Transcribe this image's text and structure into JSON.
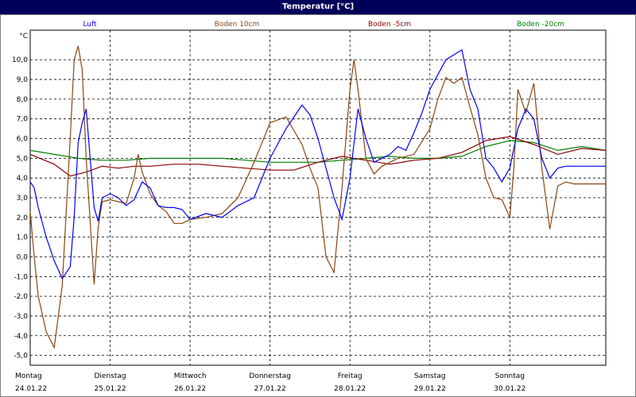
{
  "window": {
    "title": "Temperatur [°C]"
  },
  "chart_data": {
    "type": "line",
    "title": "Temperatur [°C]",
    "ylabel": "°C",
    "ylim": [
      -5.5,
      11.5
    ],
    "yticks": [
      10,
      9,
      8,
      7,
      6,
      5,
      4,
      3,
      2,
      1,
      0,
      -1,
      -2,
      -3,
      -4,
      -5
    ],
    "ytick_labels": [
      "10,0",
      "9,0",
      "8,0",
      "7,0",
      "6,0",
      "5,0",
      "4,0",
      "3,0",
      "2,0",
      "1,0",
      "0,0",
      "-1,0",
      "-2,0",
      "-3,0",
      "-4,0",
      "-5,0"
    ],
    "xlim": [
      0,
      7.2
    ],
    "days": [
      {
        "name": "Montag",
        "date": "24.01.22"
      },
      {
        "name": "Dienstag",
        "date": "25.01.22"
      },
      {
        "name": "Mittwoch",
        "date": "26.01.22"
      },
      {
        "name": "Donnerstag",
        "date": "27.01.22"
      },
      {
        "name": "Freitag",
        "date": "28.01.22"
      },
      {
        "name": "Samstag",
        "date": "29.01.22"
      },
      {
        "name": "Sonntag",
        "date": "30.01.22"
      }
    ],
    "grid": true,
    "legend_position": "top",
    "series": [
      {
        "name": "Luft",
        "color": "#0000ff",
        "x": [
          0,
          0.05,
          0.1,
          0.2,
          0.3,
          0.4,
          0.5,
          0.55,
          0.6,
          0.65,
          0.7,
          0.8,
          0.85,
          0.9,
          1.0,
          1.1,
          1.2,
          1.3,
          1.4,
          1.5,
          1.6,
          1.7,
          1.8,
          1.9,
          2.0,
          2.2,
          2.4,
          2.6,
          2.8,
          3.0,
          3.2,
          3.4,
          3.5,
          3.6,
          3.7,
          3.8,
          3.9,
          4.0,
          4.1,
          4.2,
          4.3,
          4.4,
          4.5,
          4.6,
          4.7,
          4.8,
          4.9,
          5.0,
          5.2,
          5.4,
          5.5,
          5.6,
          5.7,
          5.8,
          5.9,
          6.0,
          6.1,
          6.2,
          6.3,
          6.4,
          6.5,
          6.6,
          6.7,
          6.8,
          6.9,
          7.0,
          7.1,
          7.2
        ],
        "y": [
          3.8,
          3.5,
          2.5,
          1.0,
          -0.2,
          -1.1,
          -0.5,
          2.0,
          5.8,
          6.8,
          7.5,
          2.5,
          1.8,
          3.0,
          3.2,
          3.0,
          2.6,
          2.9,
          3.8,
          3.5,
          2.6,
          2.5,
          2.5,
          2.4,
          1.9,
          2.2,
          2.0,
          2.6,
          3.0,
          5.0,
          6.5,
          7.7,
          7.2,
          6.0,
          4.5,
          3.0,
          1.9,
          4.0,
          7.5,
          6.0,
          4.8,
          5.0,
          5.2,
          5.6,
          5.4,
          6.3,
          7.3,
          8.5,
          10.0,
          10.5,
          8.5,
          7.5,
          5.0,
          4.5,
          3.8,
          4.5,
          6.5,
          7.5,
          7.0,
          5.0,
          4.0,
          4.5,
          4.6,
          4.6,
          4.6,
          4.6,
          4.6,
          4.6
        ]
      },
      {
        "name": "Boden 10cm",
        "color": "#8b4513",
        "x": [
          0,
          0.05,
          0.1,
          0.2,
          0.3,
          0.4,
          0.5,
          0.55,
          0.6,
          0.65,
          0.7,
          0.8,
          0.85,
          0.9,
          1.0,
          1.1,
          1.2,
          1.3,
          1.35,
          1.4,
          1.5,
          1.6,
          1.7,
          1.8,
          1.9,
          2.0,
          2.2,
          2.4,
          2.6,
          2.8,
          3.0,
          3.2,
          3.4,
          3.5,
          3.6,
          3.7,
          3.8,
          3.9,
          4.0,
          4.05,
          4.1,
          4.2,
          4.3,
          4.4,
          4.6,
          4.8,
          5.0,
          5.1,
          5.2,
          5.3,
          5.4,
          5.5,
          5.6,
          5.7,
          5.8,
          5.9,
          6.0,
          6.05,
          6.1,
          6.2,
          6.3,
          6.4,
          6.5,
          6.6,
          6.7,
          6.8,
          6.9,
          7.0,
          7.1,
          7.2
        ],
        "y": [
          2.3,
          0.0,
          -2.0,
          -3.8,
          -4.6,
          -1.5,
          6.0,
          10.0,
          10.7,
          9.5,
          5.0,
          -1.4,
          1.5,
          2.8,
          2.9,
          2.8,
          2.7,
          4.0,
          5.2,
          4.3,
          3.2,
          2.6,
          2.3,
          1.7,
          1.7,
          1.9,
          2.0,
          2.2,
          3.0,
          4.8,
          6.8,
          7.1,
          5.7,
          4.5,
          3.5,
          0.0,
          -0.8,
          3.5,
          8.5,
          10.0,
          8.5,
          5.0,
          4.2,
          4.6,
          5.0,
          5.2,
          6.5,
          8.0,
          9.1,
          8.8,
          9.1,
          7.6,
          6.2,
          4.0,
          3.0,
          2.9,
          2.0,
          4.5,
          8.5,
          7.3,
          8.8,
          4.5,
          1.4,
          3.6,
          3.8,
          3.7,
          3.7,
          3.7,
          3.7,
          3.7
        ]
      },
      {
        "name": "Boden -5cm",
        "color": "#8b0000",
        "x": [
          0,
          0.3,
          0.5,
          0.7,
          0.9,
          1.1,
          1.3,
          1.5,
          1.8,
          2.1,
          2.4,
          2.7,
          3.0,
          3.3,
          3.6,
          3.9,
          4.2,
          4.5,
          4.8,
          5.1,
          5.4,
          5.7,
          6.0,
          6.3,
          6.6,
          6.9,
          7.2
        ],
        "y": [
          5.2,
          4.7,
          4.1,
          4.3,
          4.6,
          4.5,
          4.6,
          4.6,
          4.7,
          4.7,
          4.6,
          4.5,
          4.4,
          4.4,
          4.8,
          5.1,
          4.9,
          4.7,
          4.9,
          5.0,
          5.3,
          5.9,
          6.1,
          5.7,
          5.2,
          5.5,
          5.4
        ]
      },
      {
        "name": "Boden -20cm",
        "color": "#008000",
        "x": [
          0,
          0.3,
          0.6,
          0.9,
          1.2,
          1.5,
          1.8,
          2.1,
          2.4,
          2.7,
          3.0,
          3.3,
          3.6,
          3.9,
          4.2,
          4.5,
          4.8,
          5.1,
          5.4,
          5.7,
          6.0,
          6.3,
          6.6,
          6.9,
          7.2
        ],
        "y": [
          5.4,
          5.2,
          5.0,
          4.9,
          4.9,
          5.0,
          5.0,
          5.0,
          5.0,
          4.9,
          4.8,
          4.8,
          4.8,
          4.9,
          5.0,
          5.1,
          5.0,
          5.0,
          5.1,
          5.6,
          5.9,
          5.8,
          5.4,
          5.6,
          5.4
        ]
      }
    ]
  }
}
